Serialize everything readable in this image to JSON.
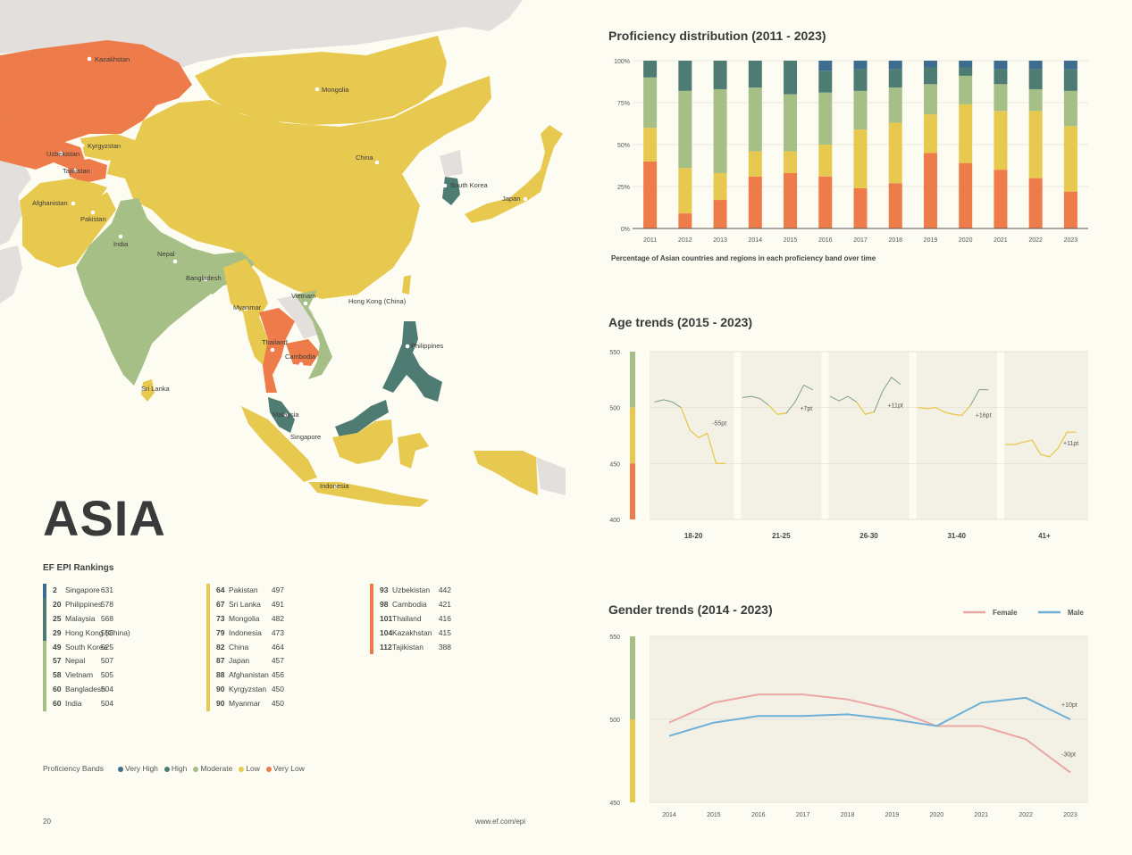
{
  "page": {
    "region_title": "ASIA",
    "page_number": "20",
    "url": "www.ef.com/epi"
  },
  "colors": {
    "very_high": "#3d6d8e",
    "high": "#4e7c72",
    "moderate": "#a6bf86",
    "low": "#e8c950",
    "very_low": "#ee7c4a",
    "background": "#fdfcf2",
    "panel": "#f3f1e6",
    "female": "#eba7a6",
    "male": "#6fb0d6"
  },
  "map": {
    "labels": [
      "Kazakhstan",
      "Mongolia",
      "Kyrgyzstan",
      "Uzbekistan",
      "Tajikistan",
      "China",
      "South Korea",
      "Japan",
      "Afghanistan",
      "Pakistan",
      "India",
      "Nepal",
      "Bangladesh",
      "Myanmar",
      "Vietnam",
      "Hong Kong (China)",
      "Thailand",
      "Cambodia",
      "Philippines",
      "Sri Lanka",
      "Malaysia",
      "Singapore",
      "Indonesia"
    ]
  },
  "rankings": {
    "title": "EF EPI Rankings",
    "columns": [
      [
        {
          "rank": "2",
          "name": "Singapore",
          "score": "631",
          "band": "very_high"
        },
        {
          "rank": "20",
          "name": "Philippines",
          "score": "578",
          "band": "high"
        },
        {
          "rank": "25",
          "name": "Malaysia",
          "score": "568",
          "band": "high"
        },
        {
          "rank": "29",
          "name": "Hong Kong (China)",
          "score": "558",
          "band": "high"
        },
        {
          "rank": "49",
          "name": "South Korea",
          "score": "525",
          "band": "moderate"
        },
        {
          "rank": "57",
          "name": "Nepal",
          "score": "507",
          "band": "moderate"
        },
        {
          "rank": "58",
          "name": "Vietnam",
          "score": "505",
          "band": "moderate"
        },
        {
          "rank": "60",
          "name": "Bangladesh",
          "score": "504",
          "band": "moderate"
        },
        {
          "rank": "60",
          "name": "India",
          "score": "504",
          "band": "moderate"
        }
      ],
      [
        {
          "rank": "64",
          "name": "Pakistan",
          "score": "497",
          "band": "low"
        },
        {
          "rank": "67",
          "name": "Sri Lanka",
          "score": "491",
          "band": "low"
        },
        {
          "rank": "73",
          "name": "Mongolia",
          "score": "482",
          "band": "low"
        },
        {
          "rank": "79",
          "name": "Indonesia",
          "score": "473",
          "band": "low"
        },
        {
          "rank": "82",
          "name": "China",
          "score": "464",
          "band": "low"
        },
        {
          "rank": "87",
          "name": "Japan",
          "score": "457",
          "band": "low"
        },
        {
          "rank": "88",
          "name": "Afghanistan",
          "score": "456",
          "band": "low"
        },
        {
          "rank": "90",
          "name": "Kyrgyzstan",
          "score": "450",
          "band": "low"
        },
        {
          "rank": "90",
          "name": "Myanmar",
          "score": "450",
          "band": "low"
        }
      ],
      [
        {
          "rank": "93",
          "name": "Uzbekistan",
          "score": "442",
          "band": "very_low"
        },
        {
          "rank": "98",
          "name": "Cambodia",
          "score": "421",
          "band": "very_low"
        },
        {
          "rank": "101",
          "name": "Thailand",
          "score": "416",
          "band": "very_low"
        },
        {
          "rank": "104",
          "name": "Kazakhstan",
          "score": "415",
          "band": "very_low"
        },
        {
          "rank": "112",
          "name": "Tajikistan",
          "score": "388",
          "band": "very_low"
        }
      ]
    ]
  },
  "bands_legend": {
    "label": "Proficiency Bands",
    "items": [
      {
        "name": "Very High",
        "band": "very_high"
      },
      {
        "name": "High",
        "band": "high"
      },
      {
        "name": "Moderate",
        "band": "moderate"
      },
      {
        "name": "Low",
        "band": "low"
      },
      {
        "name": "Very Low",
        "band": "very_low"
      }
    ]
  },
  "chart_data": [
    {
      "type": "bar",
      "stacked": true,
      "title": "Proficiency distribution (2011 - 2023)",
      "caption": "Percentage of Asian countries and regions in each proficiency band over time",
      "categories": [
        "2011",
        "2012",
        "2013",
        "2014",
        "2015",
        "2016",
        "2017",
        "2018",
        "2019",
        "2020",
        "2021",
        "2022",
        "2023"
      ],
      "y_ticks": [
        "0%",
        "25%",
        "50%",
        "75%",
        "100%"
      ],
      "ylim": [
        0,
        100
      ],
      "series": [
        {
          "band": "very_low",
          "values": [
            40,
            9,
            17,
            31,
            33,
            31,
            24,
            27,
            45,
            39,
            35,
            30,
            22
          ]
        },
        {
          "band": "low",
          "values": [
            20,
            27,
            16,
            15,
            13,
            19,
            35,
            36,
            23,
            35,
            35,
            40,
            39
          ]
        },
        {
          "band": "moderate",
          "values": [
            30,
            46,
            50,
            38,
            34,
            31,
            23,
            21,
            18,
            17,
            16,
            13,
            21
          ]
        },
        {
          "band": "high",
          "values": [
            10,
            18,
            17,
            16,
            20,
            13,
            13,
            11,
            10,
            5,
            9,
            12,
            13
          ]
        },
        {
          "band": "very_high",
          "values": [
            0,
            0,
            0,
            0,
            0,
            6,
            5,
            5,
            4,
            4,
            5,
            5,
            5
          ]
        }
      ]
    },
    {
      "type": "line",
      "title": "Age trends (2015 - 2023)",
      "ylim": [
        400,
        550
      ],
      "y_ticks": [
        "400",
        "450",
        "500",
        "550"
      ],
      "groups": [
        {
          "label": "18-20",
          "delta": "-55pt",
          "values": [
            505,
            507,
            505,
            500,
            480,
            473,
            477,
            450,
            450
          ]
        },
        {
          "label": "21-25",
          "delta": "+7pt",
          "values": [
            509,
            510,
            508,
            502,
            494,
            495,
            505,
            520,
            516
          ]
        },
        {
          "label": "26-30",
          "delta": "+11pt",
          "values": [
            510,
            506,
            510,
            505,
            494,
            496,
            515,
            527,
            521
          ]
        },
        {
          "label": "31-40",
          "delta": "+16pt",
          "values": [
            500,
            499,
            500,
            496,
            494,
            493,
            502,
            516,
            516
          ]
        },
        {
          "label": "41+",
          "delta": "+11pt",
          "values": [
            467,
            467,
            469,
            471,
            458,
            456,
            464,
            478,
            478
          ]
        }
      ]
    },
    {
      "type": "line",
      "title": "Gender trends (2014 - 2023)",
      "x": [
        "2014",
        "2015",
        "2016",
        "2017",
        "2018",
        "2019",
        "2020",
        "2021",
        "2022",
        "2023"
      ],
      "ylim": [
        450,
        550
      ],
      "y_ticks": [
        "450",
        "500",
        "550"
      ],
      "series": [
        {
          "name": "Female",
          "color": "#eba7a6",
          "delta": "-30pt",
          "values": [
            498,
            510,
            515,
            515,
            512,
            506,
            496,
            496,
            488,
            468
          ]
        },
        {
          "name": "Male",
          "color": "#6fb0d6",
          "delta": "+10pt",
          "values": [
            490,
            498,
            502,
            502,
            503,
            500,
            496,
            510,
            513,
            500
          ]
        }
      ]
    }
  ]
}
